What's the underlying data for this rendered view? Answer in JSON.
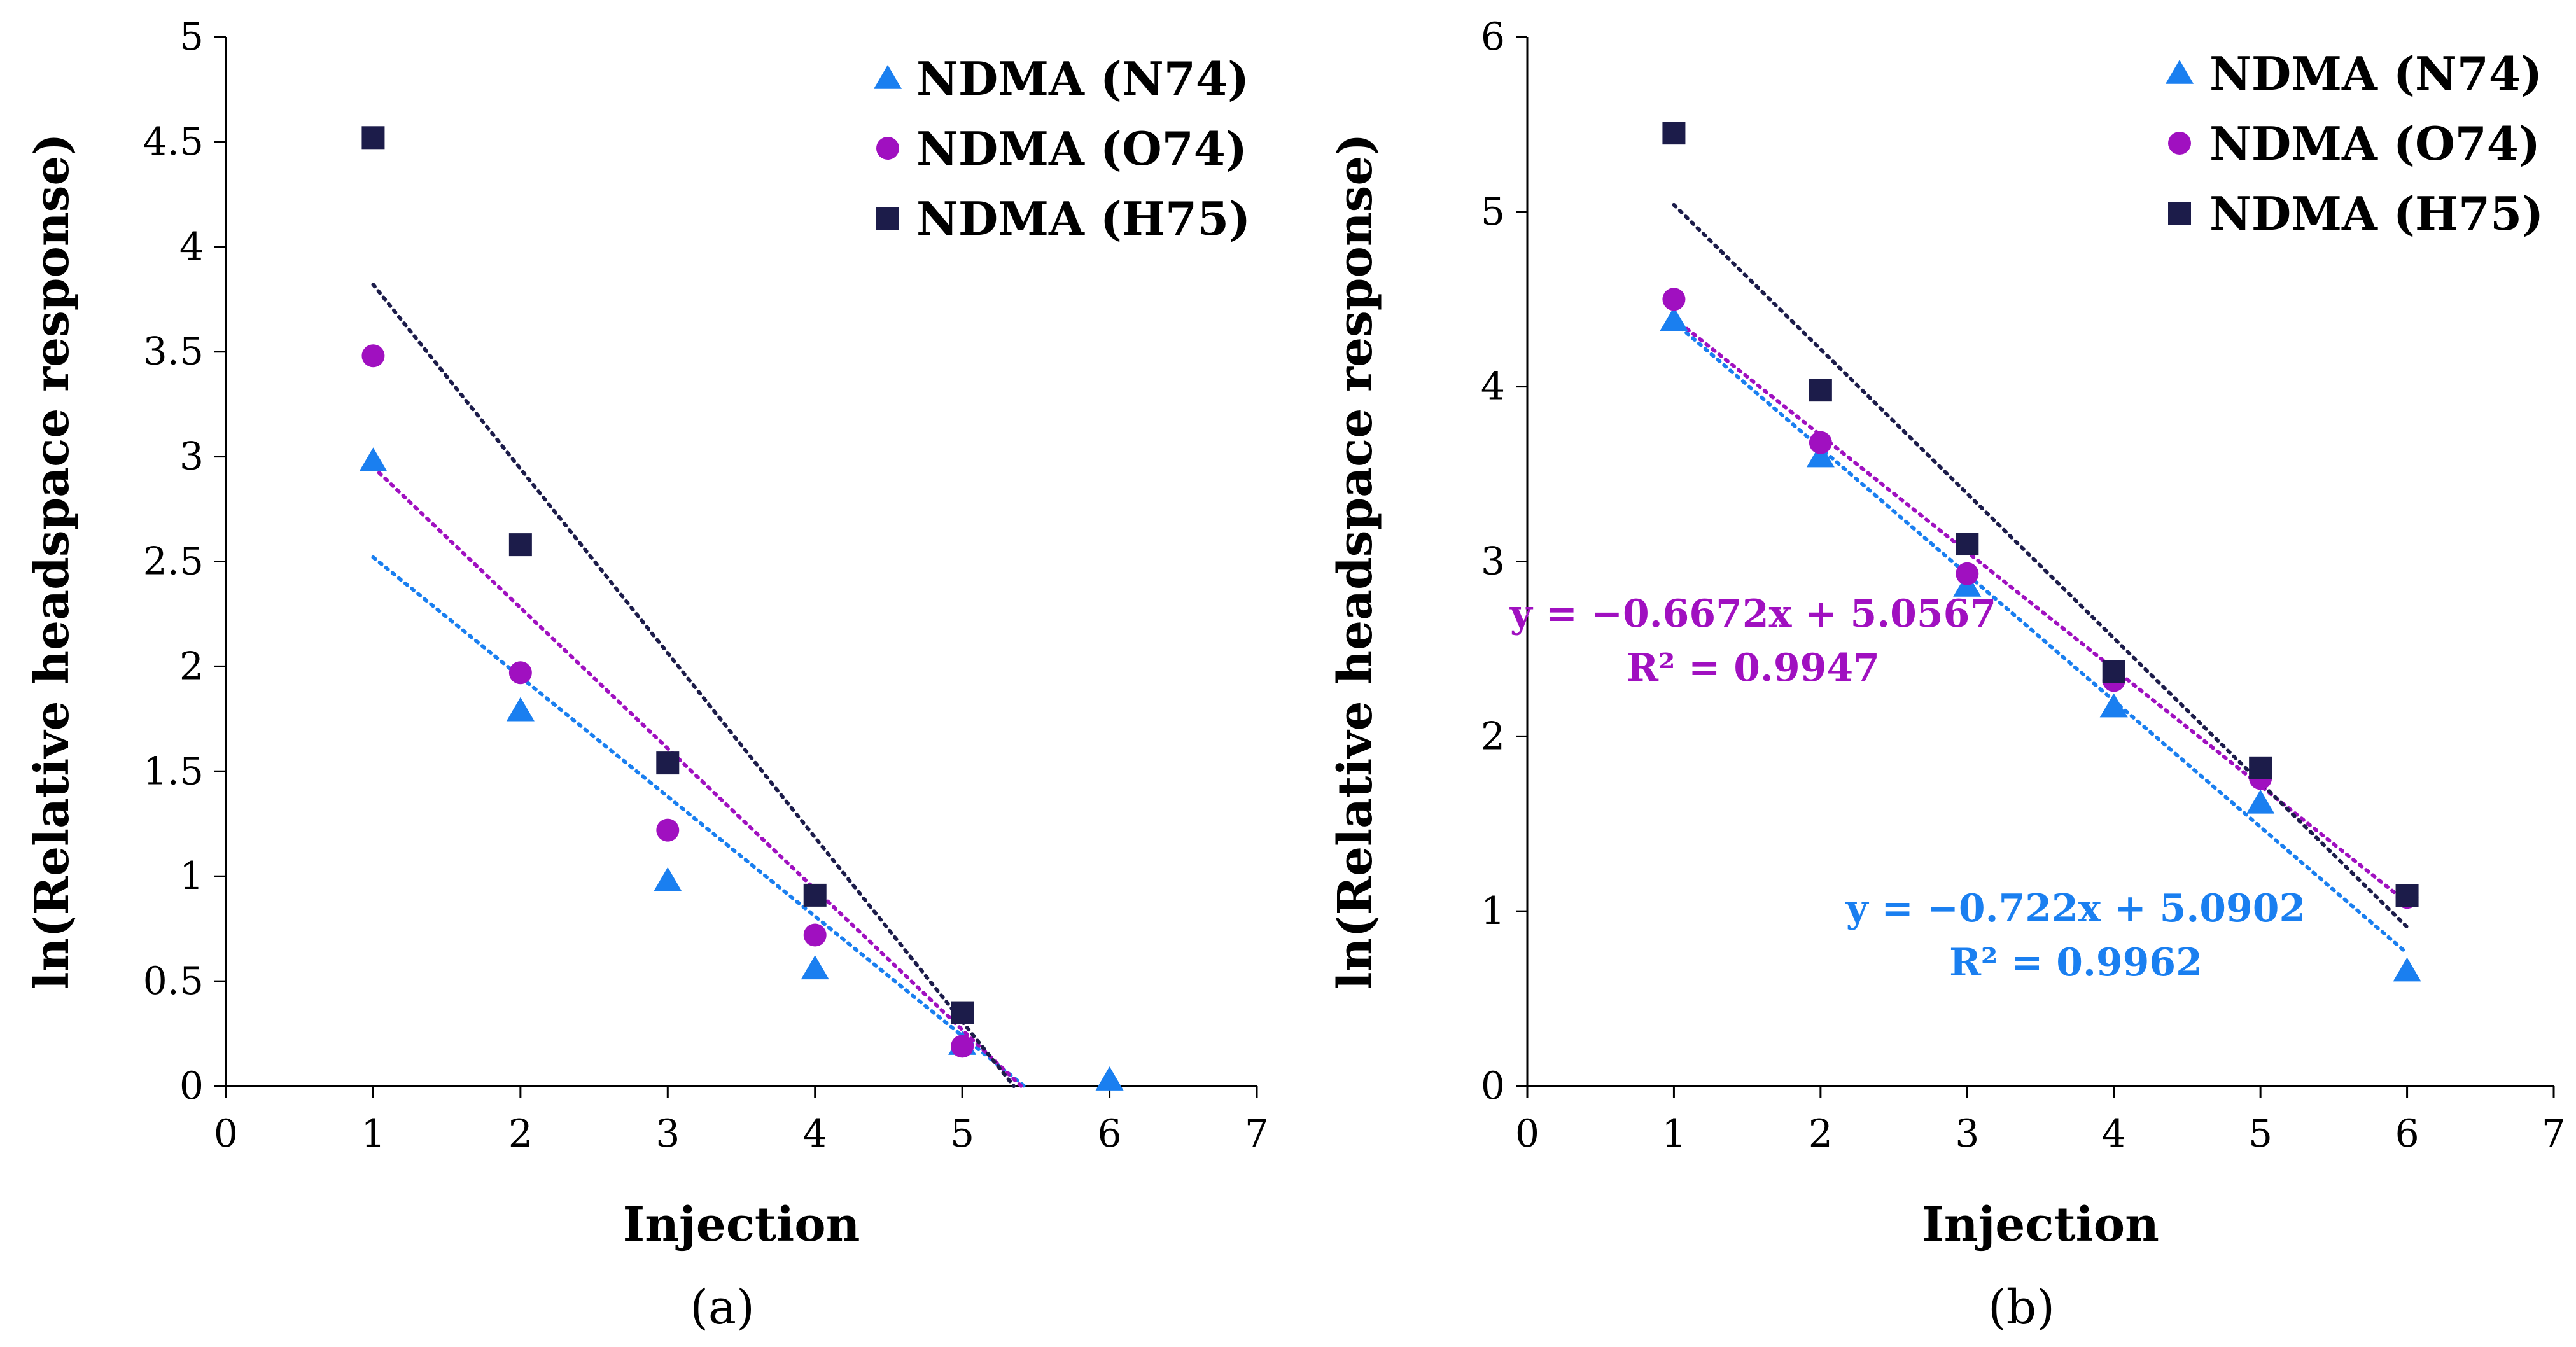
{
  "colors": {
    "N74": "#1a7ff0",
    "O74": "#a010c0",
    "H75": "#1c1c4a",
    "axis": "#000000"
  },
  "chart_data": [
    {
      "type": "scatter",
      "panel_label": "(a)",
      "xlabel": "Injection",
      "ylabel": "ln(Relative headspace response)",
      "xlim": [
        0,
        7
      ],
      "ylim": [
        0,
        5
      ],
      "xticks": [
        "0",
        "1",
        "2",
        "3",
        "4",
        "5",
        "6",
        "7"
      ],
      "yticks": [
        "0",
        "0.5",
        "1",
        "1.5",
        "2",
        "2.5",
        "3",
        "3.5",
        "4",
        "4.5",
        "5"
      ],
      "legend_position": "top-right",
      "series": [
        {
          "key": "N74",
          "name": "NDMA (N74)",
          "marker": "triangle",
          "x": [
            1,
            2,
            3,
            4,
            5,
            6
          ],
          "y": [
            2.98,
            1.79,
            0.98,
            0.56,
            0.2,
            0.03
          ],
          "trend": {
            "x": [
              1,
              5.42
            ],
            "y": [
              2.52,
              0.0
            ]
          }
        },
        {
          "key": "O74",
          "name": "NDMA (O74)",
          "marker": "circle",
          "x": [
            1,
            2,
            3,
            4,
            5
          ],
          "y": [
            3.48,
            1.97,
            1.22,
            0.72,
            0.19
          ],
          "trend": {
            "x": [
              1,
              5.4
            ],
            "y": [
              2.95,
              0.0
            ]
          }
        },
        {
          "key": "H75",
          "name": "NDMA (H75)",
          "marker": "square",
          "x": [
            1,
            2,
            3,
            4,
            5
          ],
          "y": [
            4.52,
            2.58,
            1.54,
            0.91,
            0.35
          ],
          "trend": {
            "x": [
              1,
              5.35
            ],
            "y": [
              3.82,
              0.0
            ]
          }
        }
      ],
      "annotations": []
    },
    {
      "type": "scatter",
      "panel_label": "(b)",
      "xlabel": "Injection",
      "ylabel": "ln(Relative headspace response)",
      "xlim": [
        0,
        7
      ],
      "ylim": [
        0,
        6
      ],
      "xticks": [
        "0",
        "1",
        "2",
        "3",
        "4",
        "5",
        "6",
        "7"
      ],
      "yticks": [
        "0",
        "1",
        "2",
        "3",
        "4",
        "5",
        "6"
      ],
      "legend_position": "top-right",
      "series": [
        {
          "key": "N74",
          "name": "NDMA (N74)",
          "marker": "triangle",
          "x": [
            1,
            2,
            3,
            4,
            5,
            6
          ],
          "y": [
            4.38,
            3.6,
            2.86,
            2.17,
            1.62,
            0.66
          ],
          "trend": {
            "x": [
              1,
              6
            ],
            "y": [
              4.37,
              0.76
            ]
          }
        },
        {
          "key": "O74",
          "name": "NDMA (O74)",
          "marker": "circle",
          "x": [
            1,
            2,
            3,
            4,
            5,
            6
          ],
          "y": [
            4.5,
            3.68,
            2.93,
            2.32,
            1.76,
            1.08
          ],
          "trend": {
            "x": [
              1,
              6
            ],
            "y": [
              4.39,
              1.05
            ]
          }
        },
        {
          "key": "H75",
          "name": "NDMA (H75)",
          "marker": "square",
          "x": [
            1,
            2,
            3,
            4,
            5,
            6
          ],
          "y": [
            5.45,
            3.98,
            3.1,
            2.37,
            1.82,
            1.09
          ],
          "trend": {
            "x": [
              1,
              6
            ],
            "y": [
              5.04,
              0.91
            ]
          }
        }
      ],
      "annotations": [
        {
          "key": "O74",
          "lines": [
            "y = −0.6672x + 5.0567",
            "R² = 0.9947"
          ]
        },
        {
          "key": "N74",
          "lines": [
            "y = −0.722x + 5.0902",
            "R² = 0.9962"
          ]
        }
      ]
    }
  ]
}
